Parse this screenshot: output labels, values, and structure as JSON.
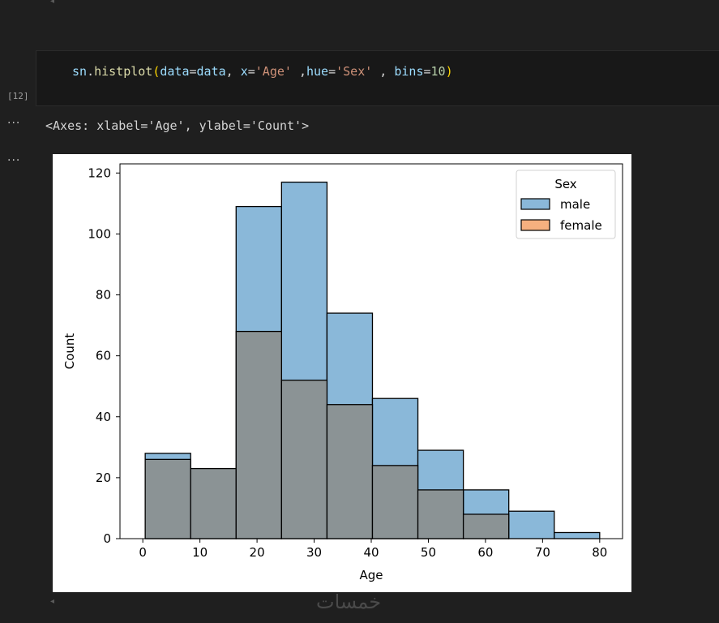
{
  "cell": {
    "execution_count": "[12]",
    "code": {
      "obj": "sn",
      "dot": ".",
      "func": "histplot",
      "open": "(",
      "p1": "data",
      "eq1": "=",
      "v1": "data",
      "sep1": ", ",
      "p2": "x",
      "eq2": "=",
      "v2": "'Age'",
      "sep2": " ,",
      "p3": "hue",
      "eq3": "=",
      "v3": "'Sex'",
      "sep3": " , ",
      "p4": "bins",
      "eq4": "=",
      "v4": "10",
      "close": ")"
    }
  },
  "output": {
    "ellipsis_1": "···",
    "ellipsis_2": "···",
    "text": "<Axes: xlabel='Age', ylabel='Count'>"
  },
  "watermark": "خمسات",
  "colors": {
    "male": "#8ab8d9",
    "female_overlap": "#8b9395",
    "female_legend": "#f6b07f",
    "edge": "#000000"
  },
  "chart_data": {
    "type": "bar",
    "xlabel": "Age",
    "ylabel": "Count",
    "xlim": [
      -4,
      84
    ],
    "ylim": [
      0,
      123
    ],
    "xticks": [
      0,
      10,
      20,
      30,
      40,
      50,
      60,
      70,
      80
    ],
    "yticks": [
      0,
      20,
      40,
      60,
      80,
      100,
      120
    ],
    "bin_edges": [
      0.42,
      8.378,
      16.336,
      24.294,
      32.252,
      40.21,
      48.168,
      56.126,
      64.084,
      72.042,
      80.0
    ],
    "legend": {
      "title": "Sex",
      "position": "top-right"
    },
    "series": [
      {
        "name": "male",
        "values": [
          28,
          23,
          109,
          117,
          74,
          46,
          29,
          16,
          9,
          2
        ]
      },
      {
        "name": "female",
        "values": [
          26,
          23,
          68,
          52,
          44,
          24,
          16,
          8,
          0,
          0
        ]
      }
    ]
  }
}
